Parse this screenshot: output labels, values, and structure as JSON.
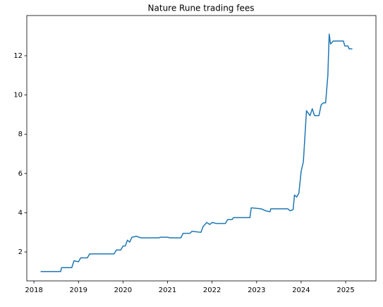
{
  "chart_data": {
    "type": "line",
    "title": "Nature Rune trading fees",
    "x": [
      2018.15,
      2018.6,
      2018.62,
      2018.85,
      2018.9,
      2019.0,
      2019.05,
      2019.2,
      2019.25,
      2019.5,
      2019.8,
      2019.85,
      2019.95,
      2020.0,
      2020.05,
      2020.1,
      2020.15,
      2020.2,
      2020.3,
      2020.4,
      2020.8,
      2020.85,
      2021.0,
      2021.05,
      2021.3,
      2021.35,
      2021.5,
      2021.55,
      2021.75,
      2021.8,
      2021.88,
      2021.95,
      2022.0,
      2022.1,
      2022.3,
      2022.35,
      2022.45,
      2022.48,
      2022.85,
      2022.88,
      2023.1,
      2023.2,
      2023.3,
      2023.32,
      2023.7,
      2023.75,
      2023.82,
      2023.85,
      2023.9,
      2023.95,
      2024.0,
      2024.05,
      2024.08,
      2024.12,
      2024.15,
      2024.2,
      2024.25,
      2024.3,
      2024.4,
      2024.45,
      2024.5,
      2024.55,
      2024.6,
      2024.63,
      2024.66,
      2024.72,
      2024.95,
      2024.98,
      2025.05,
      2025.08,
      2025.15
    ],
    "series": [
      {
        "color": "#1f77b4",
        "values": [
          1.0,
          1.0,
          1.2,
          1.2,
          1.55,
          1.5,
          1.7,
          1.7,
          1.9,
          1.9,
          1.9,
          2.1,
          2.1,
          2.3,
          2.3,
          2.6,
          2.5,
          2.75,
          2.8,
          2.72,
          2.72,
          2.75,
          2.75,
          2.72,
          2.72,
          2.95,
          2.95,
          3.05,
          3.0,
          3.3,
          3.5,
          3.4,
          3.5,
          3.45,
          3.45,
          3.65,
          3.65,
          3.75,
          3.75,
          4.25,
          4.2,
          4.1,
          4.05,
          4.2,
          4.2,
          4.1,
          4.15,
          4.9,
          4.8,
          5.0,
          6.1,
          6.6,
          7.7,
          9.2,
          9.1,
          8.95,
          9.3,
          8.95,
          8.95,
          9.5,
          9.6,
          9.6,
          11.0,
          13.1,
          12.6,
          12.75,
          12.75,
          12.5,
          12.5,
          12.35,
          12.35
        ]
      }
    ],
    "xlim": [
      2017.84,
      2025.68
    ],
    "xticks": [
      2018,
      2019,
      2020,
      2021,
      2022,
      2023,
      2024,
      2025
    ],
    "ylim": [
      0.525,
      14.05
    ],
    "yticks": [
      2,
      4,
      6,
      8,
      10,
      12
    ]
  }
}
